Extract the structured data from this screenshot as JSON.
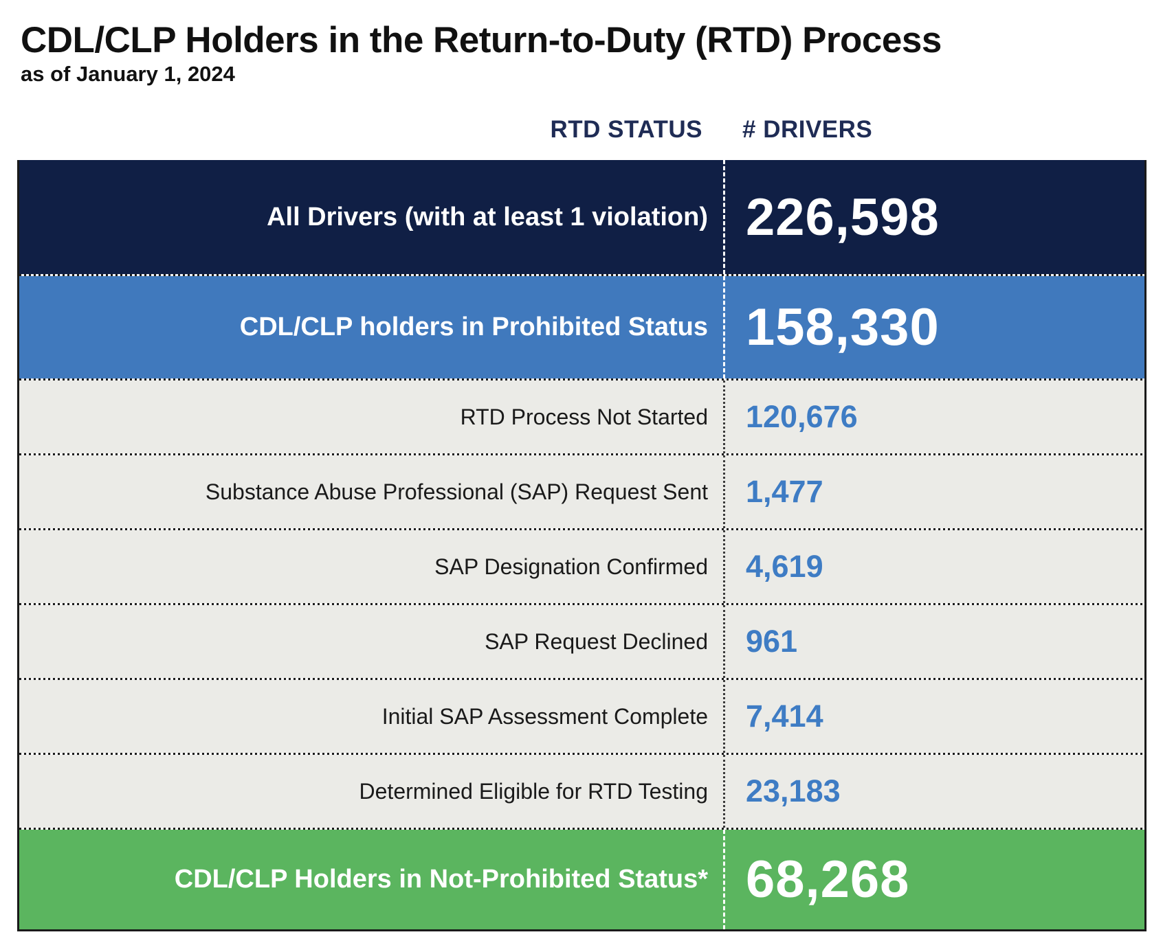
{
  "page": {
    "title": "CDL/CLP Holders in the Return-to-Duty (RTD) Process",
    "subtitle": "as of January 1, 2024"
  },
  "table": {
    "columns": {
      "status": "RTD STATUS",
      "drivers": "# DRIVERS"
    },
    "rows": [
      {
        "label": "All Drivers (with at least 1 violation)",
        "value": "226,598",
        "type": "navy"
      },
      {
        "label": "CDL/CLP holders in Prohibited Status",
        "value": "158,330",
        "type": "blue"
      },
      {
        "label": "RTD Process Not Started",
        "value": "120,676",
        "type": "gray"
      },
      {
        "label": "Substance Abuse Professional (SAP) Request Sent",
        "value": "1,477",
        "type": "gray"
      },
      {
        "label": "SAP Designation Confirmed",
        "value": "4,619",
        "type": "gray"
      },
      {
        "label": "SAP Request Declined",
        "value": "961",
        "type": "gray"
      },
      {
        "label": "Initial SAP Assessment Complete",
        "value": "7,414",
        "type": "gray"
      },
      {
        "label": "Determined Eligible for RTD Testing",
        "value": "23,183",
        "type": "gray"
      },
      {
        "label": "CDL/CLP Holders in Not-Prohibited Status*",
        "value": "68,268",
        "type": "green"
      }
    ],
    "colors": {
      "navy_row": "#101f45",
      "blue_row": "#4079bd",
      "gray_row": "#ebebe7",
      "green_row": "#5bb55f",
      "number_blue": "#3e7cc4",
      "header_navy": "#1f2c55"
    }
  },
  "chart_data": {
    "type": "table",
    "title": "CDL/CLP Holders in the Return-to-Duty (RTD) Process",
    "subtitle": "as of January 1, 2024",
    "columns": [
      "RTD STATUS",
      "# DRIVERS"
    ],
    "rows": [
      {
        "status": "All Drivers (with at least 1 violation)",
        "drivers": 226598,
        "emphasis": "navy"
      },
      {
        "status": "CDL/CLP holders in Prohibited Status",
        "drivers": 158330,
        "emphasis": "blue"
      },
      {
        "status": "RTD Process Not Started",
        "drivers": 120676,
        "emphasis": "none"
      },
      {
        "status": "Substance Abuse Professional (SAP) Request Sent",
        "drivers": 1477,
        "emphasis": "none"
      },
      {
        "status": "SAP Designation Confirmed",
        "drivers": 4619,
        "emphasis": "none"
      },
      {
        "status": "SAP Request Declined",
        "drivers": 961,
        "emphasis": "none"
      },
      {
        "status": "Initial SAP Assessment Complete",
        "drivers": 7414,
        "emphasis": "none"
      },
      {
        "status": "Determined Eligible for RTD Testing",
        "drivers": 23183,
        "emphasis": "none"
      },
      {
        "status": "CDL/CLP Holders in Not-Prohibited Status*",
        "drivers": 68268,
        "emphasis": "green"
      }
    ]
  }
}
